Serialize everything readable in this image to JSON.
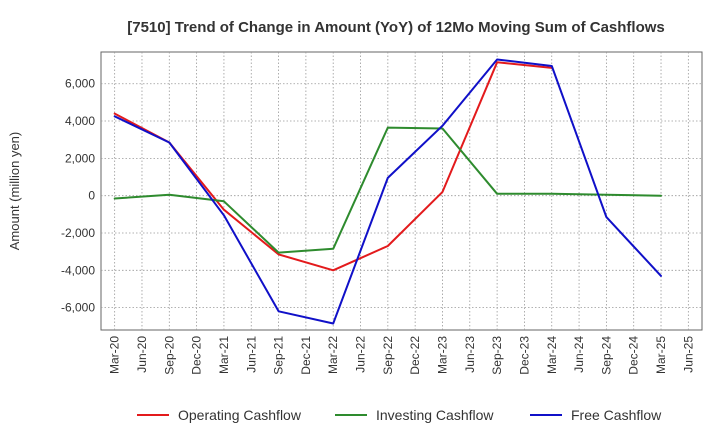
{
  "chart_data": {
    "type": "line",
    "title": "[7510]  Trend of Change in Amount (YoY) of 12Mo Moving Sum of Cashflows",
    "xlabel": "",
    "ylabel": "Amount (million yen)",
    "ylim": [
      -7200,
      7700
    ],
    "yticks": [
      -6000,
      -4000,
      -2000,
      0,
      2000,
      4000,
      6000
    ],
    "ytick_labels": [
      "-6,000",
      "-4,000",
      "-2,000",
      "0",
      "2,000",
      "4,000",
      "6,000"
    ],
    "categories": [
      "Mar-20",
      "Jun-20",
      "Sep-20",
      "Dec-20",
      "Mar-21",
      "Jun-21",
      "Sep-21",
      "Dec-21",
      "Mar-22",
      "Jun-22",
      "Sep-22",
      "Dec-22",
      "Mar-23",
      "Jun-23",
      "Sep-23",
      "Dec-23",
      "Mar-24",
      "Jun-24",
      "Sep-24",
      "Dec-24",
      "Mar-25",
      "Jun-25"
    ],
    "grid": true,
    "legend_position": "bottom",
    "series": [
      {
        "name": "Operating Cashflow",
        "color": "#e31a1c",
        "values": [
          4400,
          null,
          2850,
          null,
          -750,
          null,
          -3150,
          null,
          -4000,
          null,
          -2700,
          null,
          200,
          null,
          7150,
          null,
          6850,
          null,
          null,
          null,
          null,
          null
        ]
      },
      {
        "name": "Investing Cashflow",
        "color": "#2e8b2e",
        "values": [
          -150,
          null,
          50,
          null,
          -300,
          null,
          -3050,
          null,
          -2850,
          null,
          3650,
          null,
          3600,
          null,
          100,
          null,
          100,
          null,
          50,
          null,
          0,
          null
        ]
      },
      {
        "name": "Free Cashflow",
        "color": "#1010c8",
        "values": [
          4250,
          null,
          2850,
          null,
          -1050,
          null,
          -6200,
          null,
          -6850,
          null,
          950,
          null,
          3750,
          null,
          7300,
          null,
          6950,
          null,
          -1150,
          null,
          -4300,
          null
        ]
      }
    ]
  }
}
